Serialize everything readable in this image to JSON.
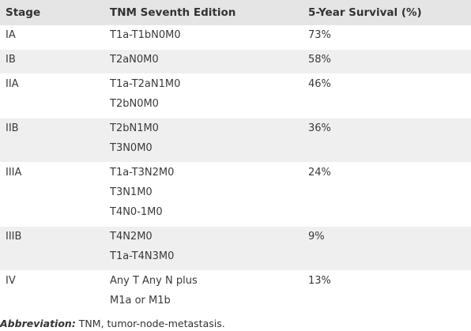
{
  "table": {
    "headers": [
      "Stage",
      "TNM Seventh Edition",
      "5-Year Survival (%)"
    ],
    "rows": [
      {
        "stage": "IA",
        "tnm": [
          "T1a-T1bN0M0"
        ],
        "survival": "73%"
      },
      {
        "stage": "IB",
        "tnm": [
          "T2aN0M0"
        ],
        "survival": "58%"
      },
      {
        "stage": "IIA",
        "tnm": [
          "T1a-T2aN1M0",
          "T2bN0M0"
        ],
        "survival": "46%"
      },
      {
        "stage": "IIB",
        "tnm": [
          "T2bN1M0",
          "T3N0M0"
        ],
        "survival": "36%"
      },
      {
        "stage": "IIIA",
        "tnm": [
          "T1a-T3N2M0",
          "T3N1M0",
          "T4N0-1M0"
        ],
        "survival": "24%"
      },
      {
        "stage": "IIIB",
        "tnm": [
          "T4N2M0",
          "T1a-T4N3M0"
        ],
        "survival": "9%"
      },
      {
        "stage": "IV",
        "tnm": [
          "Any T Any N plus",
          "M1a or M1b"
        ],
        "survival": "13%"
      }
    ]
  },
  "footnote": {
    "label": "Abbreviation:",
    "text": " TNM, tumor-node-metastasis."
  },
  "colors": {
    "header_bg": "#e5e5e5",
    "stripe_bg": "#efefef",
    "row_bg": "#ffffff"
  }
}
